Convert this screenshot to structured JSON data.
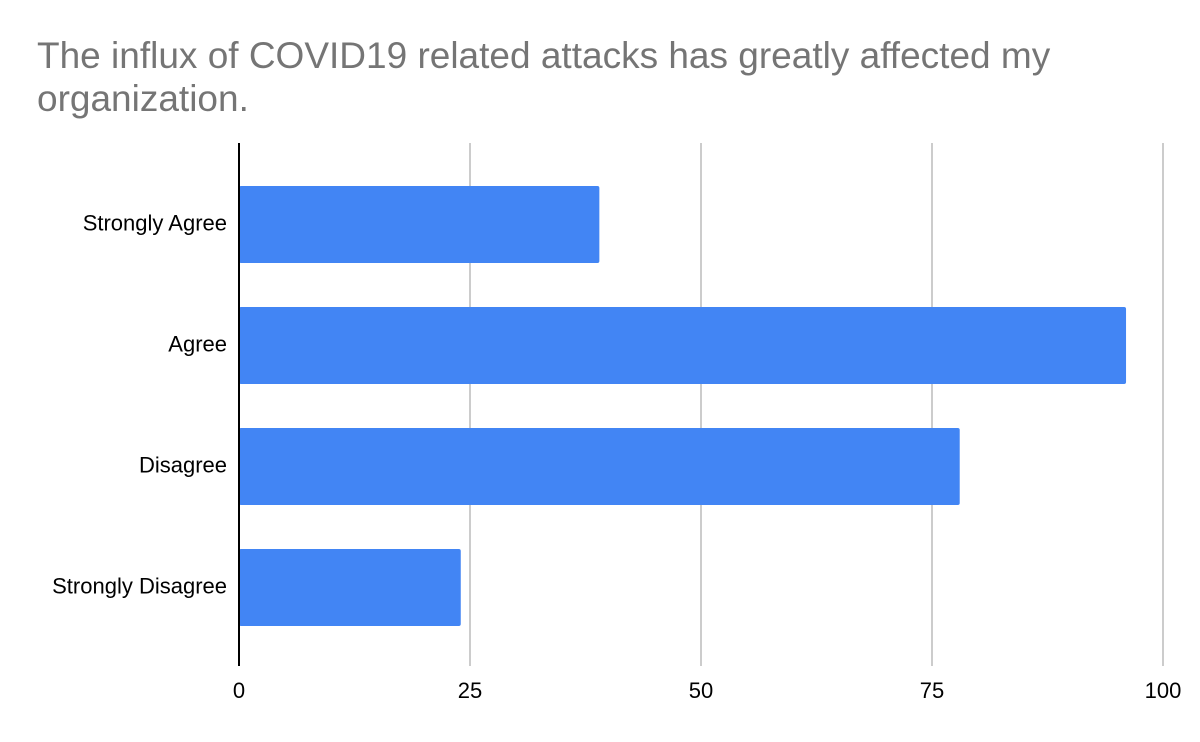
{
  "chart_data": {
    "type": "bar",
    "orientation": "horizontal",
    "title": "The influx of COVID19 related attacks has greatly affected my organization.",
    "categories": [
      "Strongly Agree",
      "Agree",
      "Disagree",
      "Strongly Disagree"
    ],
    "values": [
      39,
      96,
      78,
      24
    ],
    "xlim": [
      0,
      100
    ],
    "xticks": [
      "0",
      "25",
      "50",
      "75",
      "100"
    ],
    "grid": "vertical",
    "legend": "none",
    "bar_color": "#4285f4",
    "title_color": "#757575"
  }
}
